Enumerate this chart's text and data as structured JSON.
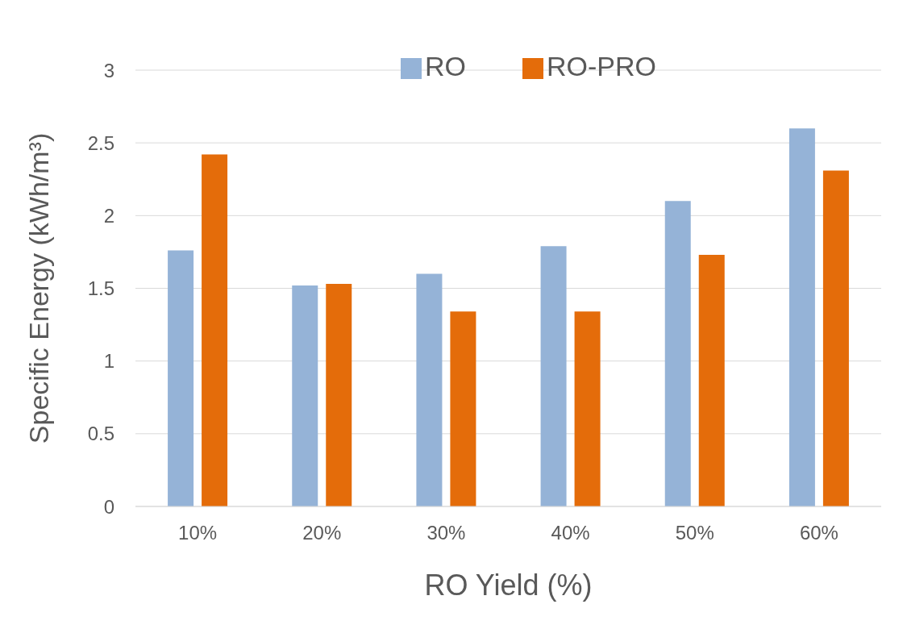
{
  "chart_data": {
    "type": "bar",
    "xlabel": "RO Yield (%)",
    "ylabel": "Specific Energy (kWh/m³)",
    "categories": [
      "10%",
      "20%",
      "30%",
      "40%",
      "50%",
      "60%"
    ],
    "series": [
      {
        "name": "RO",
        "color": "#95b3d7",
        "values": [
          1.76,
          1.52,
          1.6,
          1.79,
          2.1,
          2.6
        ]
      },
      {
        "name": "RO-PRO",
        "color": "#e46c0a",
        "values": [
          2.42,
          1.53,
          1.34,
          1.34,
          1.73,
          2.31
        ]
      }
    ],
    "ylim": [
      0,
      3
    ],
    "yticks": [
      0,
      0.5,
      1,
      1.5,
      2,
      2.5,
      3
    ],
    "grid": "y",
    "legend": "top"
  }
}
